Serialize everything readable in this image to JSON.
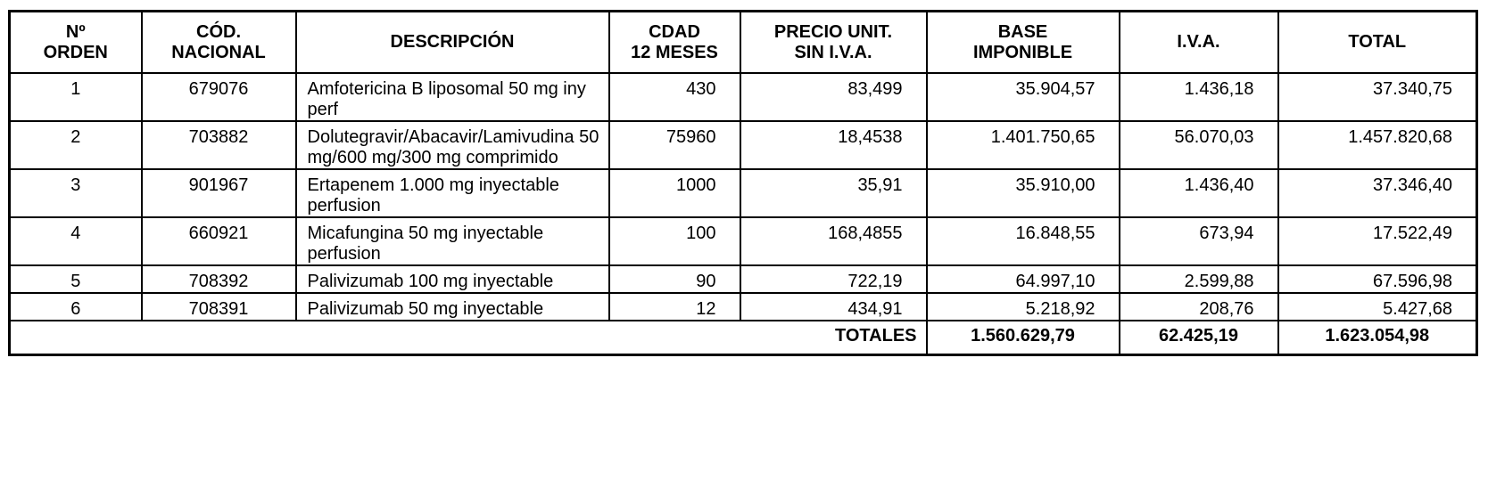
{
  "headers": [
    [
      "Nº",
      "ORDEN"
    ],
    [
      "CÓD.",
      "NACIONAL"
    ],
    [
      "DESCRIPCIÓN"
    ],
    [
      "CDAD",
      "12 MESES"
    ],
    [
      "PRECIO UNIT.",
      "SIN I.V.A."
    ],
    [
      "BASE",
      "IMPONIBLE"
    ],
    [
      "I.V.A."
    ],
    [
      "TOTAL"
    ]
  ],
  "rows": [
    {
      "orden": "1",
      "codigo": "679076",
      "descripcion": "Amfotericina B liposomal 50 mg iny perf",
      "cantidad": "430",
      "precio": "83,499",
      "base": "35.904,57",
      "iva": "1.436,18",
      "total": "37.340,75"
    },
    {
      "orden": "2",
      "codigo": "703882",
      "descripcion": "Dolutegravir/Abacavir/Lamivudina 50 mg/600 mg/300 mg comprimido",
      "cantidad": "75960",
      "precio": "18,4538",
      "base": "1.401.750,65",
      "iva": "56.070,03",
      "total": "1.457.820,68"
    },
    {
      "orden": "3",
      "codigo": "901967",
      "descripcion": "Ertapenem 1.000 mg inyectable perfusion",
      "cantidad": "1000",
      "precio": "35,91",
      "base": "35.910,00",
      "iva": "1.436,40",
      "total": "37.346,40"
    },
    {
      "orden": "4",
      "codigo": "660921",
      "descripcion": "Micafungina 50 mg inyectable perfusion",
      "cantidad": "100",
      "precio": "168,4855",
      "base": "16.848,55",
      "iva": "673,94",
      "total": "17.522,49"
    },
    {
      "orden": "5",
      "codigo": "708392",
      "descripcion": "Palivizumab 100 mg inyectable",
      "cantidad": "90",
      "precio": "722,19",
      "base": "64.997,10",
      "iva": "2.599,88",
      "total": "67.596,98"
    },
    {
      "orden": "6",
      "codigo": "708391",
      "descripcion": "Palivizumab 50 mg inyectable",
      "cantidad": "12",
      "precio": "434,91",
      "base": "5.218,92",
      "iva": "208,76",
      "total": "5.427,68"
    }
  ],
  "totals": {
    "label": "TOTALES",
    "base": "1.560.629,79",
    "iva": "62.425,19",
    "total": "1.623.054,98"
  }
}
